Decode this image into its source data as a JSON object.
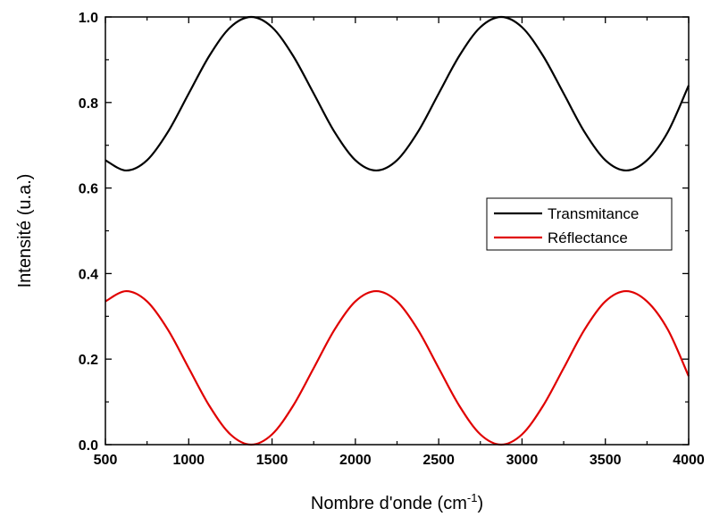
{
  "chart_data": {
    "type": "line",
    "xlabel": "Nombre d'onde (cm",
    "xlabel_sup": "-1",
    "xlabel_end": ")",
    "ylabel": "Intensité (u.a.)",
    "xlim": [
      500,
      4000
    ],
    "ylim": [
      0.0,
      1.0
    ],
    "x_ticks": [
      500,
      1000,
      1500,
      2000,
      2500,
      3000,
      3500,
      4000
    ],
    "x_tick_labels": [
      "500",
      "1000",
      "1500",
      "2000",
      "2500",
      "3000",
      "3500",
      "4000"
    ],
    "y_ticks": [
      0.0,
      0.2,
      0.4,
      0.6,
      0.8,
      1.0
    ],
    "y_tick_labels": [
      "0.0",
      "0.2",
      "0.4",
      "0.6",
      "0.8",
      "1.0"
    ],
    "grid": false,
    "legend_position": "right",
    "x": [
      500,
      625,
      750,
      875,
      1000,
      1125,
      1250,
      1375,
      1500,
      1625,
      1750,
      1875,
      2000,
      2125,
      2250,
      2375,
      2500,
      2625,
      2750,
      2875,
      3000,
      3125,
      3250,
      3375,
      3500,
      3625,
      3750,
      3875,
      4000
    ],
    "series": [
      {
        "name": "Transmitance",
        "color": "#000000",
        "values": [
          0.665,
          0.641,
          0.665,
          0.731,
          0.821,
          0.91,
          0.976,
          1.0,
          0.976,
          0.91,
          0.821,
          0.731,
          0.665,
          0.641,
          0.665,
          0.731,
          0.821,
          0.91,
          0.976,
          1.0,
          0.976,
          0.91,
          0.821,
          0.731,
          0.665,
          0.641,
          0.665,
          0.731,
          0.84
        ]
      },
      {
        "name": "Réflectance",
        "color": "#e00000",
        "values": [
          0.335,
          0.359,
          0.335,
          0.269,
          0.179,
          0.09,
          0.024,
          0.0,
          0.024,
          0.09,
          0.179,
          0.269,
          0.335,
          0.359,
          0.335,
          0.269,
          0.179,
          0.09,
          0.024,
          0.0,
          0.024,
          0.09,
          0.179,
          0.269,
          0.335,
          0.359,
          0.335,
          0.269,
          0.16
        ]
      }
    ]
  }
}
